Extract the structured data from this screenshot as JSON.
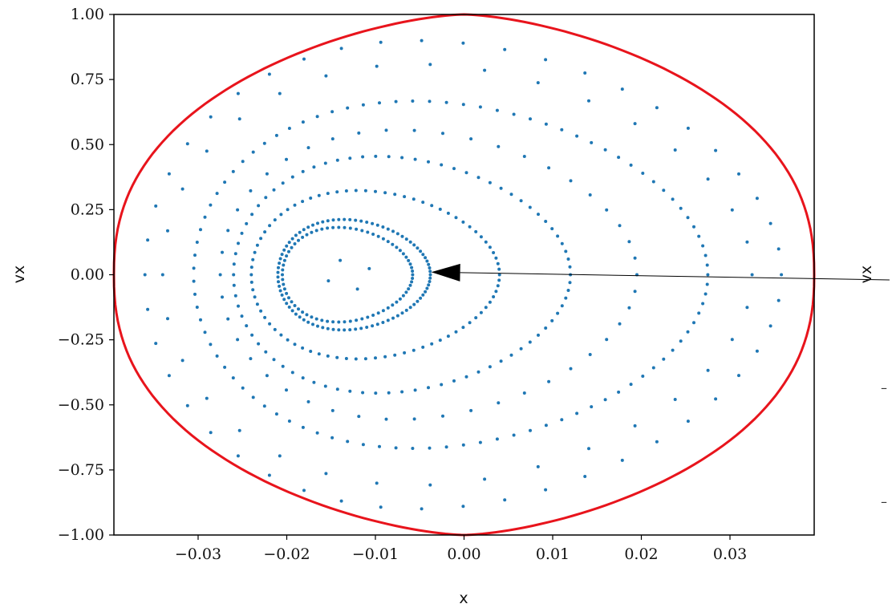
{
  "chart_data": {
    "type": "scatter",
    "title": "",
    "xlabel": "x",
    "ylabel": "vx",
    "xlim": [
      -0.0395,
      0.0395
    ],
    "ylim": [
      -1.0,
      1.0
    ],
    "xticks": [
      "−0.03",
      "−0.02",
      "−0.01",
      "0.00",
      "0.01",
      "0.02",
      "0.03"
    ],
    "xtick_values": [
      -0.03,
      -0.02,
      -0.01,
      0.0,
      0.01,
      0.02,
      0.03
    ],
    "yticks": [
      "1.00",
      "0.75",
      "0.50",
      "0.25",
      "0.00",
      "−0.25",
      "−0.50",
      "−0.75",
      "−1.00"
    ],
    "ytick_values": [
      1.0,
      0.75,
      0.5,
      0.25,
      0.0,
      -0.25,
      -0.5,
      -0.75,
      -1.0
    ],
    "grid": false,
    "colors": {
      "points": "#1f77b4",
      "boundary": "#e8141c",
      "axes": "#000000"
    },
    "boundary": {
      "shape": "separatrix",
      "x_extent": [
        -0.0395,
        0.0395
      ],
      "vx_extent": [
        -1.0,
        1.0
      ]
    },
    "orbits": [
      {
        "kind": "island",
        "cx": -0.013,
        "cy": 0.0,
        "a": 0.0025,
        "b": 0.06,
        "n": 4
      },
      {
        "kind": "ring",
        "left": -0.0205,
        "right": -0.0058,
        "b": 0.18,
        "n": 70
      },
      {
        "kind": "ring",
        "left": -0.021,
        "right": -0.0038,
        "b": 0.21,
        "n": 85
      },
      {
        "kind": "ring",
        "left": -0.024,
        "right": 0.004,
        "b": 0.32,
        "n": 80
      },
      {
        "kind": "ring",
        "left": -0.026,
        "right": 0.012,
        "b": 0.45,
        "n": 80
      },
      {
        "kind": "ring",
        "left": -0.0275,
        "right": 0.0195,
        "b": 0.55,
        "n": 46
      },
      {
        "kind": "ring",
        "left": -0.0305,
        "right": 0.0275,
        "b": 0.66,
        "n": 95
      },
      {
        "kind": "ring",
        "left": -0.034,
        "right": 0.0325,
        "b": 0.8,
        "n": 34
      },
      {
        "kind": "ring",
        "left": -0.036,
        "right": 0.0358,
        "b": 0.89,
        "n": 48
      }
    ],
    "annotation": {
      "type": "arrow",
      "from": [
        0.048,
        -0.02
      ],
      "to": [
        -0.0037,
        0.01
      ]
    },
    "cutoff_panel": {
      "ylabel": "vx"
    }
  }
}
